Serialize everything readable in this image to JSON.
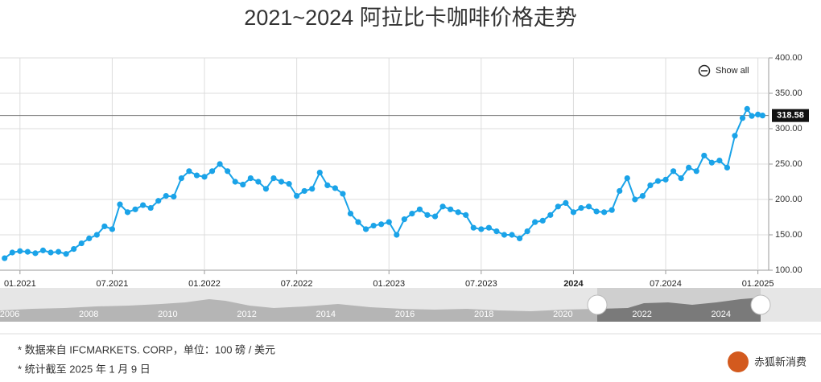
{
  "chart_data": {
    "type": "line",
    "title": "2021~2024 阿拉比卡咖啡价格走势",
    "x": [
      -1,
      -0.5,
      0,
      0.5,
      1,
      1.5,
      2,
      2.5,
      3,
      3.5,
      4,
      4.5,
      5,
      5.5,
      6,
      6.5,
      7,
      7.5,
      8,
      8.5,
      9,
      9.5,
      10,
      10.5,
      11,
      11.5,
      12,
      12.5,
      13,
      13.5,
      14,
      14.5,
      15,
      15.5,
      16,
      16.5,
      17,
      17.5,
      18,
      18.5,
      19,
      19.5,
      20,
      20.5,
      21,
      21.5,
      22,
      22.5,
      23,
      23.5,
      24,
      24.5,
      25,
      25.5,
      26,
      26.5,
      27,
      27.5,
      28,
      28.5,
      29,
      29.5,
      30,
      30.5,
      31,
      31.5,
      32,
      32.5,
      33,
      33.5,
      34,
      34.5,
      35,
      35.5,
      36,
      36.5,
      37,
      37.5,
      38,
      38.5,
      39,
      39.5,
      40,
      40.5,
      41,
      41.5,
      42,
      42.5,
      43,
      43.5,
      44,
      44.5,
      45,
      45.5,
      46,
      46.5,
      47,
      47.3,
      47.6,
      48,
      48.3
    ],
    "series": [
      {
        "name": "阿拉比卡咖啡",
        "color": "#1aa3e8",
        "values": [
          117,
          125,
          127,
          126,
          124,
          128,
          125,
          126,
          123,
          130,
          138,
          145,
          150,
          162,
          158,
          193,
          182,
          186,
          192,
          188,
          198,
          205,
          204,
          230,
          240,
          234,
          232,
          240,
          250,
          240,
          225,
          221,
          230,
          225,
          215,
          230,
          225,
          222,
          205,
          212,
          215,
          238,
          220,
          216,
          208,
          180,
          168,
          158,
          163,
          165,
          168,
          150,
          172,
          180,
          186,
          178,
          176,
          190,
          186,
          182,
          178,
          160,
          158,
          160,
          155,
          150,
          150,
          145,
          155,
          168,
          170,
          178,
          190,
          195,
          182,
          188,
          190,
          183,
          182,
          185,
          212,
          230,
          200,
          205,
          220,
          226,
          228,
          240,
          230,
          245,
          240,
          262,
          252,
          255,
          245,
          290,
          315,
          328,
          318,
          320,
          318.58
        ]
      }
    ],
    "xlim": [
      -1.3,
      48.7
    ],
    "xticks": [
      {
        "value": 0,
        "label": "01.2021"
      },
      {
        "value": 6,
        "label": "07.2021"
      },
      {
        "value": 12,
        "label": "01.2022"
      },
      {
        "value": 18,
        "label": "07.2022"
      },
      {
        "value": 24,
        "label": "01.2023"
      },
      {
        "value": 30,
        "label": "07.2023"
      },
      {
        "value": 36,
        "label": "2024"
      },
      {
        "value": 42,
        "label": "07.2024"
      },
      {
        "value": 48,
        "label": "01.2025"
      }
    ],
    "ylim": [
      100,
      400
    ],
    "yticks": [
      {
        "value": 100,
        "label": "100.00"
      },
      {
        "value": 150,
        "label": "150.00"
      },
      {
        "value": 200,
        "label": "200.00"
      },
      {
        "value": 250,
        "label": "250.00"
      },
      {
        "value": 300,
        "label": "300.00"
      },
      {
        "value": 350,
        "label": "350.00"
      },
      {
        "value": 400,
        "label": "400.00"
      }
    ],
    "grid": true,
    "show_all": "Show all",
    "navigator_labels": [
      "2006",
      "2008",
      "2010",
      "2012",
      "2014",
      "2016",
      "2018",
      "2020",
      "2022",
      "2024"
    ],
    "notes": [
      "* 数据来自 IFCMARKETS. CORP，单位：100 磅 / 美元",
      "* 统计截至 2025 年 1 月 9 日"
    ],
    "brand": "赤狐新消费"
  }
}
